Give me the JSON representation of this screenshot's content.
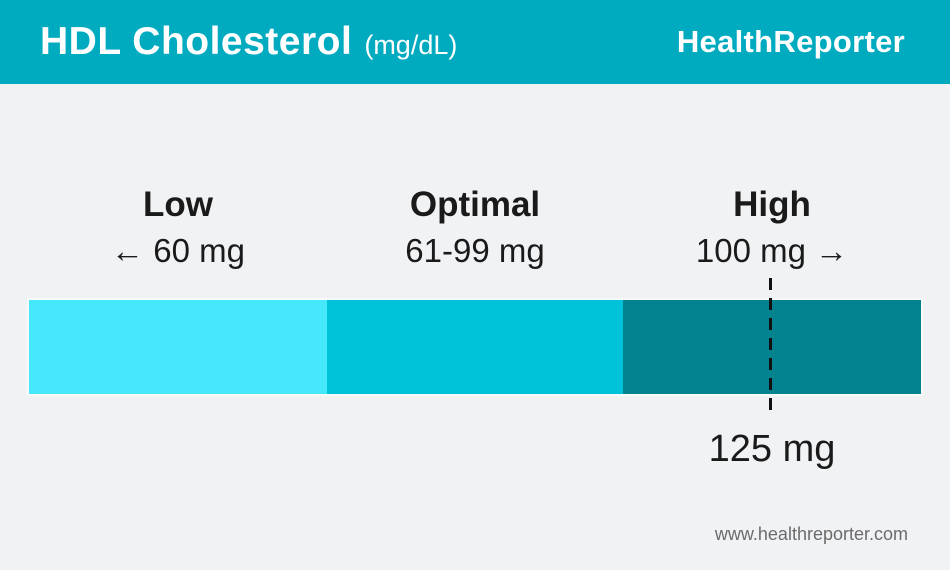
{
  "page": {
    "background": "#F1F2F4"
  },
  "header": {
    "title": "HDL Cholesterol",
    "unit": "(mg/dL)",
    "brand": "HealthReporter",
    "background": "#00ABC0",
    "text_color": "#FFFFFF"
  },
  "chart_data": {
    "type": "bar",
    "title": "HDL Cholesterol (mg/dL)",
    "orientation": "horizontal-range-scale",
    "segments": [
      {
        "label": "Low",
        "range_text": "← 60 mg",
        "range_min": 0,
        "range_max": 60,
        "color": "#45E9FB"
      },
      {
        "label": "Optimal",
        "range_text": "61-99 mg",
        "range_min": 61,
        "range_max": 99,
        "color": "#00C3D9"
      },
      {
        "label": "High",
        "range_text": "100 mg →",
        "range_min": 100,
        "range_max": null,
        "color": "#038290"
      }
    ],
    "marker": {
      "label": "125 mg",
      "value": 125,
      "line_style": "dashed",
      "line_color": "#111111"
    },
    "legend": "none",
    "grid": false
  },
  "footer": {
    "website": "www.healthreporter.com",
    "text_color": "#6B6B6B"
  }
}
